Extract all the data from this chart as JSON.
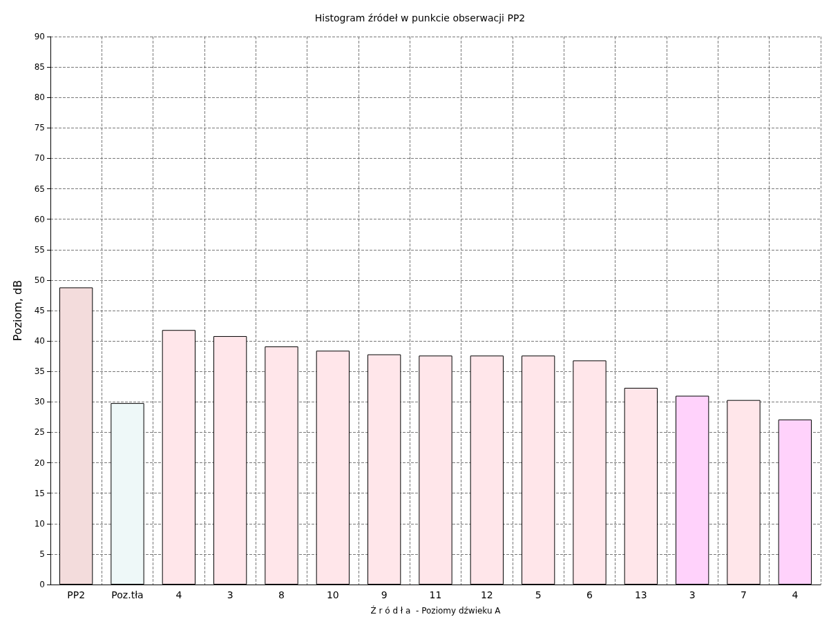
{
  "chart_data": {
    "type": "bar",
    "title": "Histogram źródeł w punkcie obserwacji PP2",
    "xlabel": "Ź r ó d ł a  - Poziomy dźwieku A",
    "ylabel": "Poziom, dB",
    "categories": [
      "PP2",
      "Poz.tła",
      "4",
      "3",
      "8",
      "10",
      "9",
      "11",
      "12",
      "5",
      "6",
      "13",
      "3",
      "7",
      "4"
    ],
    "values": [
      48.8,
      29.8,
      41.8,
      40.8,
      39.1,
      38.4,
      37.8,
      37.6,
      37.6,
      37.6,
      36.8,
      32.3,
      31.0,
      30.3,
      27.1
    ],
    "colors": [
      "#f3dcdc",
      "#eef8f8",
      "#ffe6ea",
      "#ffe6ea",
      "#ffe6ea",
      "#ffe6ea",
      "#ffe6ea",
      "#ffe6ea",
      "#ffe6ea",
      "#ffe6ea",
      "#ffe6ea",
      "#ffe6ea",
      "#ffd2fb",
      "#ffe6ea",
      "#ffd2fb"
    ],
    "ylim": [
      0,
      90
    ],
    "yticks": [
      0,
      5,
      10,
      15,
      20,
      25,
      30,
      35,
      40,
      45,
      50,
      55,
      60,
      65,
      70,
      75,
      80,
      85,
      90
    ],
    "grid": true,
    "line_style": "dashed"
  }
}
